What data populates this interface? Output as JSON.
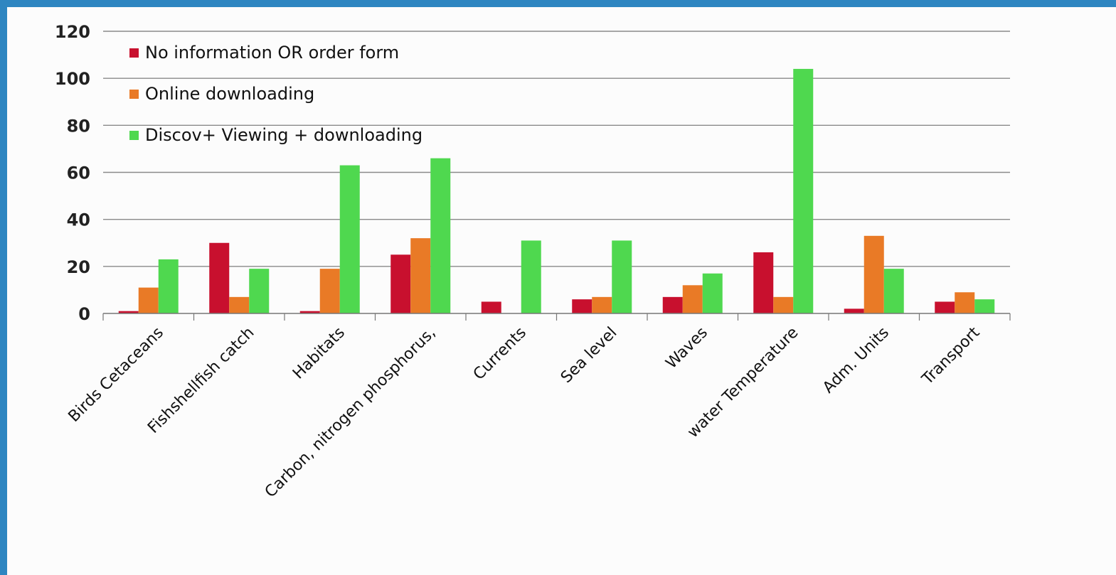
{
  "chart_data": {
    "type": "bar",
    "categories": [
      "Birds Cetaceans",
      "Fishshellfish catch",
      "Habitats",
      "Carbon, nitrogen phosphorus,",
      "Currents",
      "Sea level",
      "Waves",
      "water Temperature",
      "Adm. Units",
      "Transport"
    ],
    "series": [
      {
        "name": "No information OR order form",
        "color": "#c8102e",
        "values": [
          1,
          30,
          1,
          25,
          5,
          6,
          7,
          26,
          2,
          5
        ]
      },
      {
        "name": "Online downloading",
        "color": "#e97a26",
        "values": [
          11,
          7,
          19,
          32,
          0,
          7,
          12,
          7,
          33,
          9
        ]
      },
      {
        "name": "Discov+ Viewing + downloading",
        "color": "#4fd84f",
        "values": [
          23,
          19,
          63,
          66,
          31,
          31,
          17,
          104,
          19,
          6
        ]
      }
    ],
    "yticks": [
      0,
      20,
      40,
      60,
      80,
      100,
      120
    ],
    "ylim": [
      0,
      120
    ],
    "grid": true,
    "legend_position": "top-left"
  }
}
